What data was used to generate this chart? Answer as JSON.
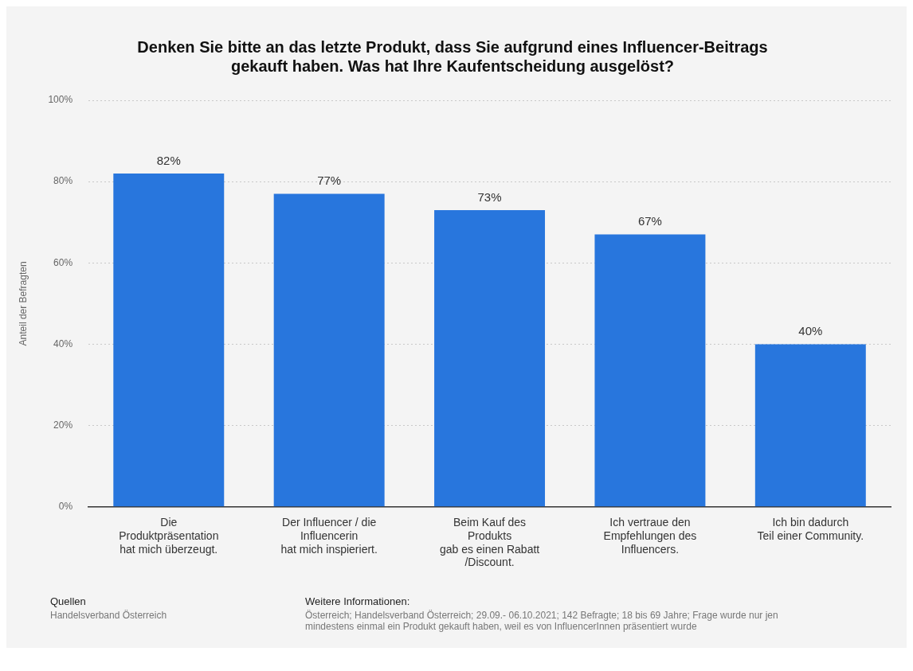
{
  "chart_data": {
    "type": "bar",
    "title": "Denken Sie bitte an das letzte Produkt, dass Sie aufgrund eines Influencer-Beitrags gekauft haben. Was hat Ihre Kaufentscheidung ausgelöst?",
    "ylabel": "Anteil der Befragten",
    "categories": [
      "Die\nProduktpräsentation\nhat mich überzeugt.",
      "Der Influencer / die\nInfluencerin\nhat mich inspieriert.",
      "Beim Kauf des\nProdukts\ngab es einen Rabatt\n/Discount.",
      "Ich vertraue den\nEmpfehlungen des\nInfluencers.",
      "Ich bin dadurch\nTeil einer Community."
    ],
    "values": [
      82,
      77,
      73,
      67,
      40
    ],
    "value_labels": [
      "82%",
      "77%",
      "73%",
      "67%",
      "40%"
    ],
    "color": "#2876dd",
    "ylim": [
      0,
      100
    ],
    "yticks": [
      {
        "value": 0,
        "label": "0%"
      },
      {
        "value": 20,
        "label": "20%"
      },
      {
        "value": 40,
        "label": "40%"
      },
      {
        "value": 60,
        "label": "60%"
      },
      {
        "value": 80,
        "label": "80%"
      },
      {
        "value": 100,
        "label": "100%"
      }
    ],
    "grid": "y",
    "annotations": [
      "Quellen",
      "Handelsverband Österreich",
      "Weitere Informationen:",
      "Österreich; Handelsverband Österreich; 29.09.- 06.10.2021; 142 Befragte; 18 bis 69 Jahre; Frage wurde nur jen",
      "mindestens einmal ein Produkt gekauft haben, weil es von InfluencerInnen präsentiert wurde"
    ]
  }
}
